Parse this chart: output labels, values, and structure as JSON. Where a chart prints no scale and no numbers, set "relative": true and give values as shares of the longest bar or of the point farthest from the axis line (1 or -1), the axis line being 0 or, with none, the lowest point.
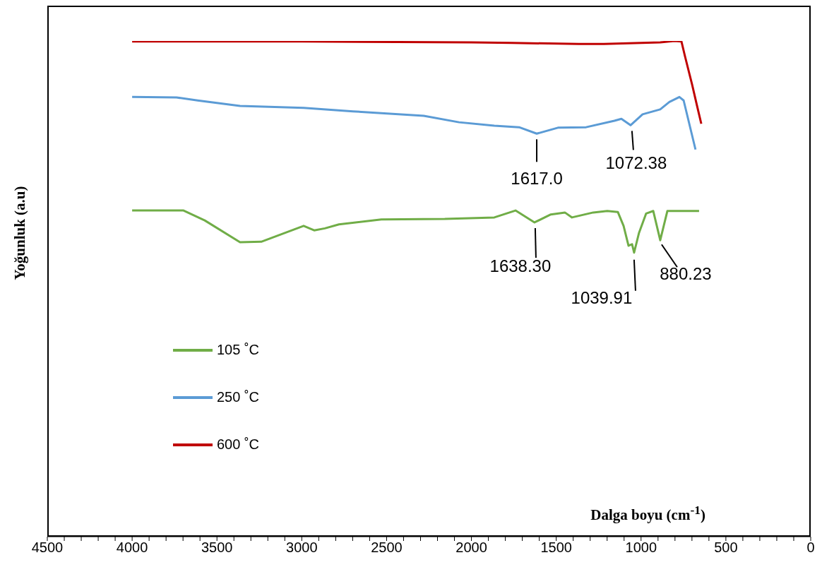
{
  "chart_data": {
    "type": "line",
    "relative": true,
    "xlabel": "Dalga boyu (cm$^{-1}$)",
    "ylabel": "Yoğunluk (a.u)",
    "legend": "left",
    "grid": false,
    "xlim": [
      4500,
      0
    ],
    "xticks": [
      4500,
      {
        "value": 4400,
        "label": null
      },
      {
        "value": 4300,
        "label": null
      },
      {
        "value": 4200,
        "label": null
      },
      {
        "value": 4100,
        "label": null
      },
      4000,
      {
        "value": 3900,
        "label": null
      },
      {
        "value": 3800,
        "label": null
      },
      {
        "value": 3700,
        "label": null
      },
      {
        "value": 3600,
        "label": null
      },
      3500,
      {
        "value": 3400,
        "label": null
      },
      {
        "value": 3300,
        "label": null
      },
      {
        "value": 3200,
        "label": null
      },
      {
        "value": 3100,
        "label": null
      },
      3000,
      {
        "value": 2900,
        "label": null
      },
      {
        "value": 2800,
        "label": null
      },
      {
        "value": 2700,
        "label": null
      },
      {
        "value": 2600,
        "label": null
      },
      2500,
      {
        "value": 2400,
        "label": null
      },
      {
        "value": 2300,
        "label": null
      },
      {
        "value": 2200,
        "label": null
      },
      {
        "value": 2100,
        "label": null
      },
      2000,
      {
        "value": 1900,
        "label": null
      },
      {
        "value": 1800,
        "label": null
      },
      {
        "value": 1700,
        "label": null
      },
      {
        "value": 1600,
        "label": null
      },
      1500,
      {
        "value": 1400,
        "label": null
      },
      {
        "value": 1300,
        "label": null
      },
      {
        "value": 1200,
        "label": null
      },
      {
        "value": 1100,
        "label": null
      },
      1000,
      {
        "value": 900,
        "label": null
      },
      {
        "value": 800,
        "label": null
      },
      {
        "value": 700,
        "label": null
      },
      {
        "value": 600,
        "label": null
      },
      500,
      {
        "value": 400,
        "label": null
      },
      {
        "value": 300,
        "label": null
      },
      {
        "value": 200,
        "label": null
      },
      {
        "value": 100,
        "label": null
      },
      0
    ],
    "series": [
      {
        "name": "105 ˚C",
        "color": "#70ad47",
        "x": [
          4000,
          3697,
          3572,
          3364,
          3239,
          2989,
          2927,
          2864,
          2781,
          2531,
          2157,
          1865,
          1740,
          1628,
          1532,
          1449,
          1407,
          1282,
          1199,
          1137,
          1103,
          1074,
          1053,
          1041,
          1012,
          970,
          928,
          887,
          845,
          658
        ],
        "values": [
          0.658,
          0.658,
          0.638,
          0.594,
          0.595,
          0.627,
          0.618,
          0.622,
          0.63,
          0.64,
          0.641,
          0.644,
          0.658,
          0.634,
          0.65,
          0.654,
          0.644,
          0.654,
          0.657,
          0.655,
          0.627,
          0.587,
          0.59,
          0.573,
          0.613,
          0.652,
          0.657,
          0.598,
          0.657,
          0.657
        ]
      },
      {
        "name": "250 ˚C",
        "color": "#5b9bd5",
        "x": [
          4000,
          3738,
          3614,
          3364,
          2989,
          2698,
          2281,
          2073,
          1865,
          1719,
          1615,
          1490,
          1324,
          1157,
          1116,
          1062,
          991,
          887,
          833,
          774,
          749,
          679
        ],
        "values": [
          0.887,
          0.886,
          0.88,
          0.869,
          0.865,
          0.858,
          0.849,
          0.836,
          0.829,
          0.826,
          0.813,
          0.825,
          0.826,
          0.839,
          0.843,
          0.83,
          0.852,
          0.862,
          0.877,
          0.887,
          0.88,
          0.781
        ]
      },
      {
        "name": "600 ˚C",
        "color": "#c00000",
        "x": [
          4000,
          3000,
          2000,
          1761,
          1366,
          1220,
          887,
          803,
          762,
          741,
          699,
          670,
          645
        ],
        "values": [
          0.999,
          0.999,
          0.997,
          0.996,
          0.994,
          0.994,
          0.997,
          1,
          0.999,
          0.969,
          0.912,
          0.869,
          0.833
        ]
      }
    ],
    "annotations": [
      {
        "text": "1617.0",
        "x": 1615,
        "y": 0.813
      },
      {
        "text": "1072.38",
        "x": 1062,
        "y": 0.83
      },
      {
        "text": "1638.30",
        "x": 1628,
        "y": 0.634
      },
      {
        "text": "1039.91",
        "x": 1041,
        "y": 0.573
      },
      {
        "text": "880.23",
        "x": 887,
        "y": 0.598
      }
    ]
  }
}
